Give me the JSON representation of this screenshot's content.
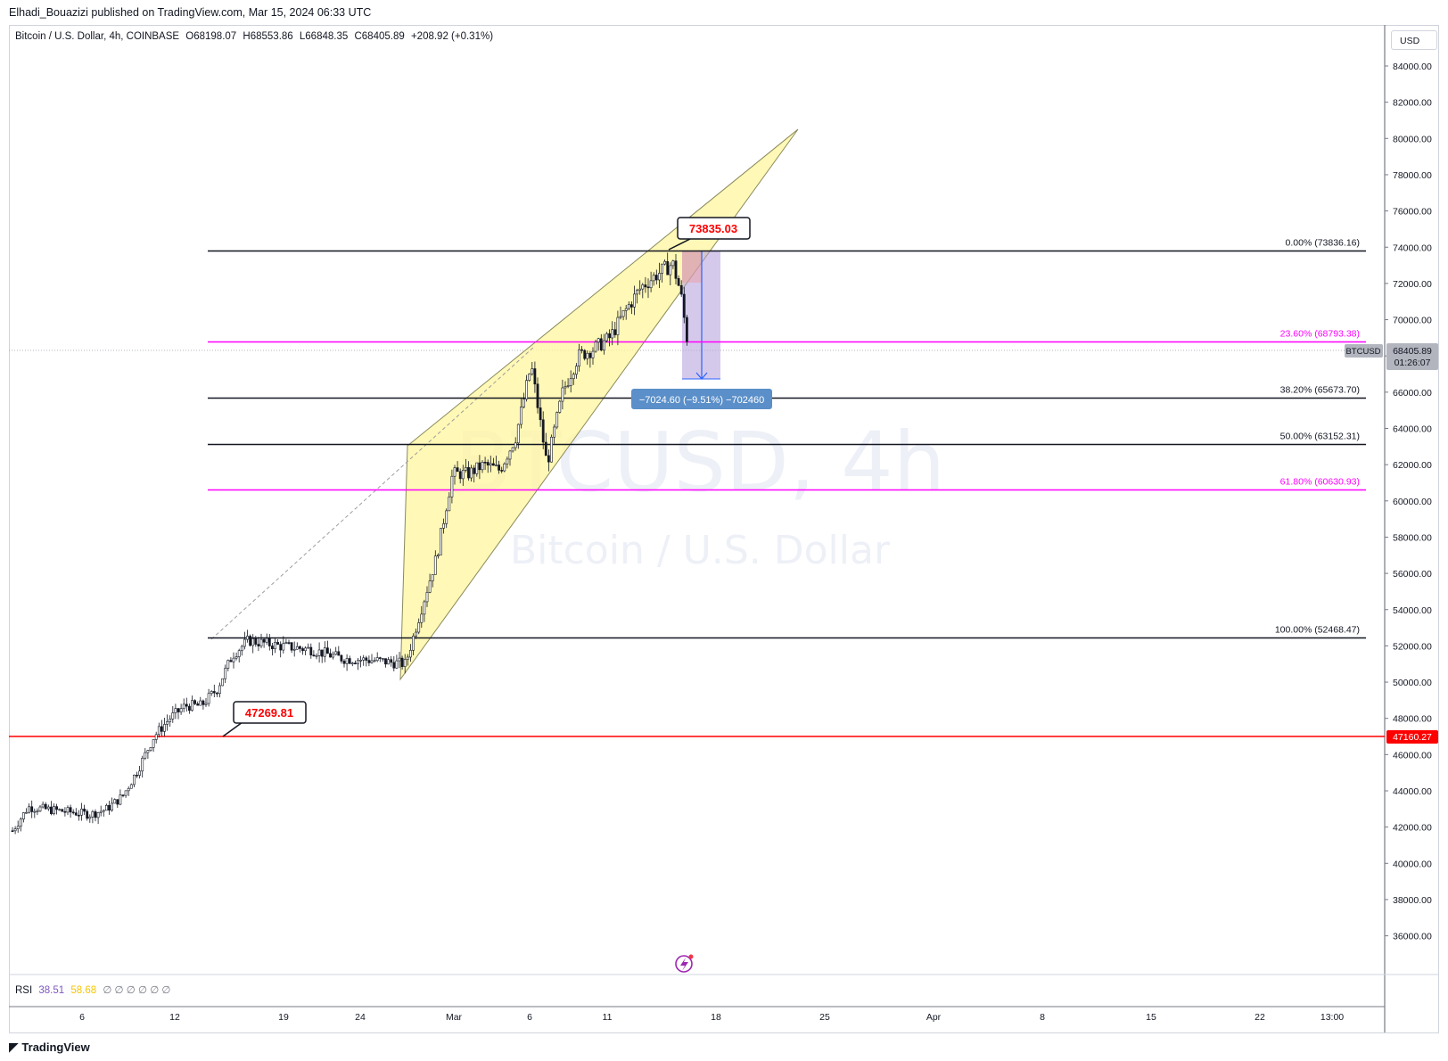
{
  "header": {
    "published": "Elhadi_Bouazizi published on TradingView.com, Mar 15, 2024 06:33 UTC"
  },
  "legend": {
    "symbol": "Bitcoin / U.S. Dollar, 4h, COINBASE",
    "open": "O68198.07",
    "high": "H68553.86",
    "low": "L66848.35",
    "close": "C68405.89",
    "change": "+208.92 (+0.31%)"
  },
  "watermark": {
    "main": "BTCUSD, 4h",
    "sub": "Bitcoin / U.S. Dollar"
  },
  "price_scale": {
    "currency": "USD",
    "last_tag": "BTCUSD",
    "last_price": "68405.89",
    "countdown": "01:26:07",
    "level_tag": "47160.27"
  },
  "annotations": {
    "high_callout": "73835.03",
    "low_callout": "47269.81",
    "measure_label": "−7024.60 (−9.51%) −702460"
  },
  "rsi": {
    "label": "RSI",
    "v1": "38.51",
    "v2": "58.68",
    "empty": "∅ ∅ ∅ ∅ ∅ ∅"
  },
  "footer": {
    "brand": "TradingView"
  },
  "colors": {
    "fib_black": "#131722",
    "fib_magenta": "#ff00ff",
    "support_red": "#ff0000",
    "wedge_fill": "#fff59d",
    "measure_fill": "#b39ddb",
    "measure_label_bg": "#5b8fc9",
    "callout_text": "#ff0000"
  },
  "chart_data": {
    "type": "candlestick",
    "title": "Bitcoin / U.S. Dollar, 4h, COINBASE",
    "ylim": [
      34000,
      86000
    ],
    "y_ticks": [
      "84000.00",
      "82000.00",
      "80000.00",
      "78000.00",
      "76000.00",
      "74000.00",
      "72000.00",
      "70000.00",
      "68000.00",
      "66000.00",
      "64000.00",
      "62000.00",
      "60000.00",
      "58000.00",
      "56000.00",
      "54000.00",
      "52000.00",
      "50000.00",
      "48000.00",
      "46000.00",
      "44000.00",
      "42000.00",
      "40000.00",
      "38000.00",
      "36000.00"
    ],
    "x_ticks": [
      "6",
      "12",
      "19",
      "24",
      "Mar",
      "6",
      "11",
      "18",
      "25",
      "Apr",
      "8",
      "15",
      "22",
      "13:00"
    ],
    "fib_levels": [
      {
        "label": "0.00% (73836.16)",
        "value": 73836.16,
        "color": "black"
      },
      {
        "label": "23.60% (68793.38)",
        "value": 68793.38,
        "color": "magenta"
      },
      {
        "label": "38.20% (65673.70)",
        "value": 65673.7,
        "color": "black"
      },
      {
        "label": "50.00% (63152.31)",
        "value": 63152.31,
        "color": "black"
      },
      {
        "label": "61.80% (60630.93)",
        "value": 60630.93,
        "color": "magenta"
      },
      {
        "label": "100.00% (52468.47)",
        "value": 52468.47,
        "color": "black"
      }
    ],
    "support_line": 47160.27,
    "last_price": 68405.89,
    "path": [
      [
        "2024-02-01",
        41800
      ],
      [
        "2024-02-02",
        43100
      ],
      [
        "2024-02-04",
        42900
      ],
      [
        "2024-02-06",
        42700
      ],
      [
        "2024-02-07",
        43000
      ],
      [
        "2024-02-08",
        43700
      ],
      [
        "2024-02-09",
        45200
      ],
      [
        "2024-02-10",
        47000
      ],
      [
        "2024-02-11",
        48000
      ],
      [
        "2024-02-12",
        48700
      ],
      [
        "2024-02-13",
        48700
      ],
      [
        "2024-02-14",
        49600
      ],
      [
        "2024-02-15",
        51500
      ],
      [
        "2024-02-16",
        52300
      ],
      [
        "2024-02-18",
        52000
      ],
      [
        "2024-02-20",
        51800
      ],
      [
        "2024-02-22",
        51300
      ],
      [
        "2024-02-24",
        51200
      ],
      [
        "2024-02-26",
        51000
      ],
      [
        "2024-02-27",
        54000
      ],
      [
        "2024-02-28",
        57000
      ],
      [
        "2024-02-29",
        61500
      ],
      [
        "2024-03-01",
        61500
      ],
      [
        "2024-03-02",
        62000
      ],
      [
        "2024-03-03",
        61700
      ],
      [
        "2024-03-04",
        63500
      ],
      [
        "2024-03-05",
        67500
      ],
      [
        "2024-03-06",
        62000
      ],
      [
        "2024-03-07",
        66000
      ],
      [
        "2024-03-08",
        68000
      ],
      [
        "2024-03-09",
        68400
      ],
      [
        "2024-03-10",
        69000
      ],
      [
        "2024-03-11",
        70500
      ],
      [
        "2024-03-12",
        71800
      ],
      [
        "2024-03-13",
        72500
      ],
      [
        "2024-03-14",
        73100
      ],
      [
        "2024-03-14T12",
        71500
      ],
      [
        "2024-03-15",
        68405.89
      ]
    ]
  }
}
